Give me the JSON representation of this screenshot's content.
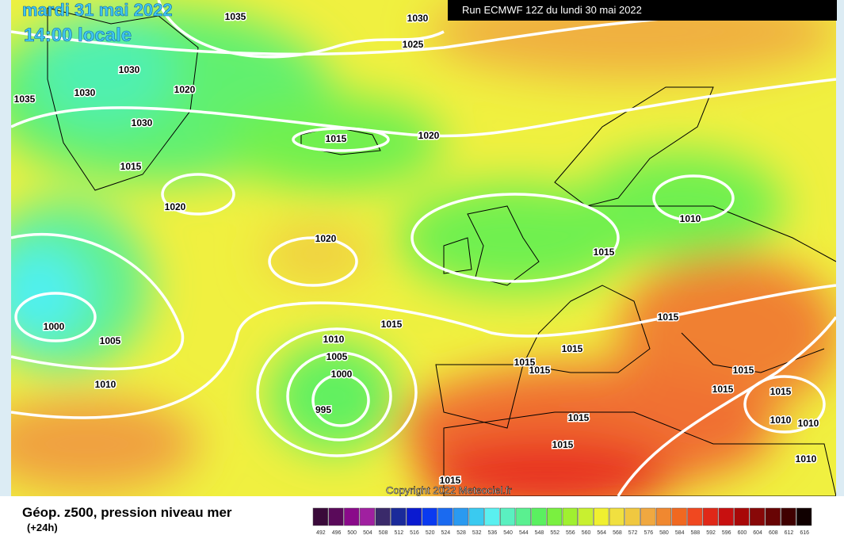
{
  "header": {
    "date": "mardi 31 mai 2022",
    "time": "14:00 locale",
    "run": "Run ECMWF 12Z du lundi 30 mai 2022",
    "copyright": "Copyright 2022 Meteociel.fr"
  },
  "map": {
    "isobar_labels": [
      "1035",
      "1030",
      "1025",
      "1030",
      "1030",
      "1035",
      "1020",
      "1030",
      "1015",
      "1020",
      "1015",
      "1020",
      "1010",
      "1020",
      "1015",
      "1015",
      "1015",
      "1000",
      "1005",
      "1010",
      "1005",
      "1015",
      "1015",
      "1015",
      "1015",
      "1000",
      "1010",
      "1015",
      "1015",
      "995",
      "1015",
      "1010",
      "1010",
      "1015",
      "1010",
      "1015"
    ]
  },
  "footer": {
    "title": "Géop. z500, pression niveau mer",
    "lead": "(+24h)"
  },
  "colorbar": {
    "labels": [
      "492",
      "496",
      "500",
      "504",
      "508",
      "512",
      "516",
      "520",
      "524",
      "528",
      "532",
      "536",
      "540",
      "544",
      "548",
      "552",
      "556",
      "560",
      "564",
      "568",
      "572",
      "576",
      "580",
      "584",
      "588",
      "592",
      "596",
      "600",
      "604",
      "608",
      "612",
      "616"
    ],
    "colors": [
      "#3a0a3a",
      "#5a0a5a",
      "#8a0a8a",
      "#a020a0",
      "#3a2a6a",
      "#1a2a9a",
      "#0a1ad0",
      "#0a3af0",
      "#1a6af0",
      "#2a9af0",
      "#3acaf0",
      "#5af0f0",
      "#5af0c0",
      "#5af090",
      "#5af060",
      "#7af040",
      "#a0f030",
      "#c8f030",
      "#f0f030",
      "#f0e040",
      "#f0c840",
      "#f0a840",
      "#f08830",
      "#f06820",
      "#f04820",
      "#e02818",
      "#c81010",
      "#a80808",
      "#880808",
      "#680404",
      "#400000",
      "#100000"
    ]
  }
}
